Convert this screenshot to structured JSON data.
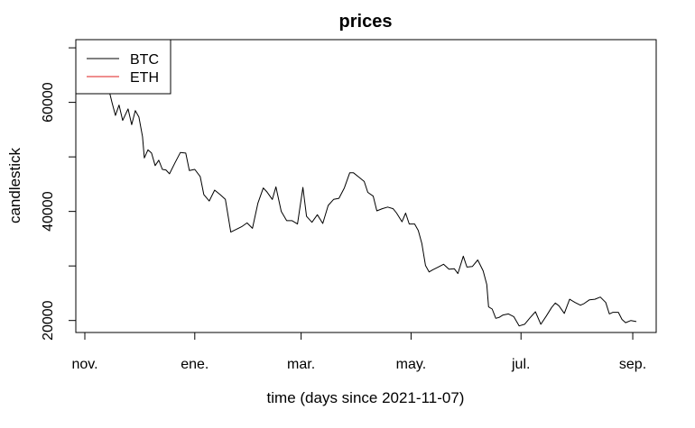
{
  "chart_data": {
    "type": "line",
    "title": "prices",
    "xlabel": "time (days since 2021-11-07)",
    "ylabel": "candlestick",
    "x_ticks": [
      "nov.",
      "ene.",
      "mar.",
      "may.",
      "jul.",
      "sep."
    ],
    "x_tick_dates": [
      "2021-11-01",
      "2022-01-01",
      "2022-03-01",
      "2022-05-01",
      "2022-07-01",
      "2022-09-01"
    ],
    "y_ticks": [
      20000,
      30000,
      40000,
      50000,
      60000,
      70000
    ],
    "y_tick_labels": [
      "20000",
      "",
      "40000",
      "",
      "60000",
      ""
    ],
    "xlim": [
      "2021-10-27",
      "2022-09-14"
    ],
    "ylim": [
      17800,
      71500
    ],
    "grid": false,
    "legend_position": "top-left",
    "series": [
      {
        "name": "BTC",
        "color": "#000000",
        "points": [
          [
            "2021-11-07",
            63200
          ],
          [
            "2021-11-10",
            64800
          ],
          [
            "2021-11-13",
            64200
          ],
          [
            "2021-11-16",
            60100
          ],
          [
            "2021-11-18",
            57600
          ],
          [
            "2021-11-20",
            59500
          ],
          [
            "2021-11-22",
            56700
          ],
          [
            "2021-11-25",
            58800
          ],
          [
            "2021-11-27",
            55900
          ],
          [
            "2021-11-29",
            58500
          ],
          [
            "2021-12-01",
            57300
          ],
          [
            "2021-12-03",
            53700
          ],
          [
            "2021-12-04",
            49800
          ],
          [
            "2021-12-06",
            51300
          ],
          [
            "2021-12-08",
            50700
          ],
          [
            "2021-12-10",
            48400
          ],
          [
            "2021-12-12",
            49400
          ],
          [
            "2021-12-14",
            47700
          ],
          [
            "2021-12-16",
            47600
          ],
          [
            "2021-12-18",
            46900
          ],
          [
            "2021-12-21",
            48900
          ],
          [
            "2021-12-24",
            50800
          ],
          [
            "2021-12-27",
            50700
          ],
          [
            "2021-12-29",
            47500
          ],
          [
            "2022-01-01",
            47700
          ],
          [
            "2022-01-04",
            46400
          ],
          [
            "2022-01-06",
            43100
          ],
          [
            "2022-01-09",
            41900
          ],
          [
            "2022-01-12",
            43900
          ],
          [
            "2022-01-15",
            43100
          ],
          [
            "2022-01-18",
            42200
          ],
          [
            "2022-01-21",
            36200
          ],
          [
            "2022-01-24",
            36700
          ],
          [
            "2022-01-27",
            37200
          ],
          [
            "2022-01-30",
            37900
          ],
          [
            "2022-02-02",
            36900
          ],
          [
            "2022-02-05",
            41500
          ],
          [
            "2022-02-08",
            44300
          ],
          [
            "2022-02-10",
            43600
          ],
          [
            "2022-02-13",
            42200
          ],
          [
            "2022-02-15",
            44500
          ],
          [
            "2022-02-18",
            40000
          ],
          [
            "2022-02-21",
            38300
          ],
          [
            "2022-02-24",
            38300
          ],
          [
            "2022-02-27",
            37700
          ],
          [
            "2022-03-02",
            44400
          ],
          [
            "2022-03-04",
            39100
          ],
          [
            "2022-03-07",
            38000
          ],
          [
            "2022-03-10",
            39400
          ],
          [
            "2022-03-13",
            37800
          ],
          [
            "2022-03-16",
            41100
          ],
          [
            "2022-03-19",
            42200
          ],
          [
            "2022-03-22",
            42400
          ],
          [
            "2022-03-25",
            44300
          ],
          [
            "2022-03-28",
            47100
          ],
          [
            "2022-03-30",
            47100
          ],
          [
            "2022-04-02",
            46300
          ],
          [
            "2022-04-05",
            45500
          ],
          [
            "2022-04-07",
            43500
          ],
          [
            "2022-04-10",
            42800
          ],
          [
            "2022-04-12",
            40100
          ],
          [
            "2022-04-15",
            40500
          ],
          [
            "2022-04-18",
            40800
          ],
          [
            "2022-04-21",
            40500
          ],
          [
            "2022-04-23",
            39700
          ],
          [
            "2022-04-26",
            38100
          ],
          [
            "2022-04-28",
            39700
          ],
          [
            "2022-04-30",
            37700
          ],
          [
            "2022-05-03",
            37700
          ],
          [
            "2022-05-05",
            36500
          ],
          [
            "2022-05-07",
            34100
          ],
          [
            "2022-05-09",
            30100
          ],
          [
            "2022-05-11",
            28900
          ],
          [
            "2022-05-13",
            29300
          ],
          [
            "2022-05-16",
            29800
          ],
          [
            "2022-05-19",
            30300
          ],
          [
            "2022-05-22",
            29400
          ],
          [
            "2022-05-25",
            29500
          ],
          [
            "2022-05-27",
            28600
          ],
          [
            "2022-05-30",
            31800
          ],
          [
            "2022-06-01",
            29800
          ],
          [
            "2022-06-04",
            29900
          ],
          [
            "2022-06-07",
            31100
          ],
          [
            "2022-06-10",
            29100
          ],
          [
            "2022-06-12",
            26600
          ],
          [
            "2022-06-13",
            22500
          ],
          [
            "2022-06-15",
            22100
          ],
          [
            "2022-06-17",
            20400
          ],
          [
            "2022-06-19",
            20600
          ],
          [
            "2022-06-21",
            21000
          ],
          [
            "2022-06-24",
            21200
          ],
          [
            "2022-06-27",
            20700
          ],
          [
            "2022-06-30",
            19000
          ],
          [
            "2022-07-03",
            19300
          ],
          [
            "2022-07-06",
            20500
          ],
          [
            "2022-07-09",
            21600
          ],
          [
            "2022-07-12",
            19300
          ],
          [
            "2022-07-15",
            20800
          ],
          [
            "2022-07-18",
            22400
          ],
          [
            "2022-07-20",
            23200
          ],
          [
            "2022-07-22",
            22700
          ],
          [
            "2022-07-25",
            21300
          ],
          [
            "2022-07-28",
            23900
          ],
          [
            "2022-07-31",
            23300
          ],
          [
            "2022-08-03",
            22800
          ],
          [
            "2022-08-05",
            23100
          ],
          [
            "2022-08-08",
            23800
          ],
          [
            "2022-08-11",
            23900
          ],
          [
            "2022-08-14",
            24300
          ],
          [
            "2022-08-17",
            23300
          ],
          [
            "2022-08-19",
            21200
          ],
          [
            "2022-08-21",
            21500
          ],
          [
            "2022-08-24",
            21500
          ],
          [
            "2022-08-26",
            20200
          ],
          [
            "2022-08-28",
            19600
          ],
          [
            "2022-08-31",
            20000
          ],
          [
            "2022-09-03",
            19800
          ]
        ]
      },
      {
        "name": "ETH",
        "color": "#df1c1c",
        "points": []
      }
    ]
  }
}
